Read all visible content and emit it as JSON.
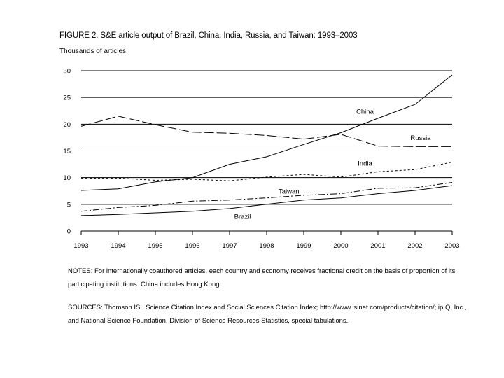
{
  "chart_data": {
    "type": "line",
    "title": "FIGURE 2.  S&E article output of Brazil, China, India, Russia, and Taiwan: 1993–2003",
    "ylabel": "Thousands of articles",
    "xlabel": "",
    "x": [
      "1993",
      "1994",
      "1995",
      "1996",
      "1997",
      "1998",
      "1999",
      "2000",
      "2001",
      "2002",
      "2003"
    ],
    "yticks": [
      "0",
      "5",
      "10",
      "15",
      "20",
      "25",
      "30"
    ],
    "ylim": [
      0,
      30
    ],
    "grid": "horizontal",
    "legend": "inline labels",
    "series": [
      {
        "name": "China",
        "dash": "solid",
        "values": [
          7.6,
          7.9,
          9.2,
          10.0,
          12.5,
          13.9,
          16.2,
          18.4,
          21.1,
          23.7,
          29.2
        ]
      },
      {
        "name": "Russia",
        "dash": "longdash",
        "values": [
          19.6,
          21.5,
          19.9,
          18.5,
          18.3,
          17.9,
          17.2,
          18.1,
          15.9,
          15.8,
          15.8
        ]
      },
      {
        "name": "India",
        "dash": "dotted",
        "values": [
          9.9,
          9.9,
          9.5,
          9.7,
          9.4,
          10.1,
          10.6,
          10.1,
          11.1,
          11.5,
          12.9
        ]
      },
      {
        "name": "Taiwan",
        "dash": "dashdot",
        "values": [
          3.7,
          4.4,
          4.8,
          5.6,
          5.8,
          6.2,
          6.7,
          7.0,
          8.0,
          8.1,
          9.1
        ]
      },
      {
        "name": "Brazil",
        "dash": "solid",
        "values": [
          2.9,
          3.1,
          3.4,
          3.7,
          4.2,
          5.0,
          5.8,
          6.2,
          7.0,
          7.6,
          8.5
        ]
      }
    ]
  },
  "notes": "NOTES:  For internationally coauthored articles, each country and economy receives fractional credit on the basis of proportion of its participating institutions. China includes Hong Kong.",
  "sources": "SOURCES:  Thomson ISI, Science Citation Index and Social Sciences Citation Index; http://www.isinet.com/products/citation/; ipIQ, Inc., and National Science Foundation, Division of Science Resources Statistics, special tabulations."
}
